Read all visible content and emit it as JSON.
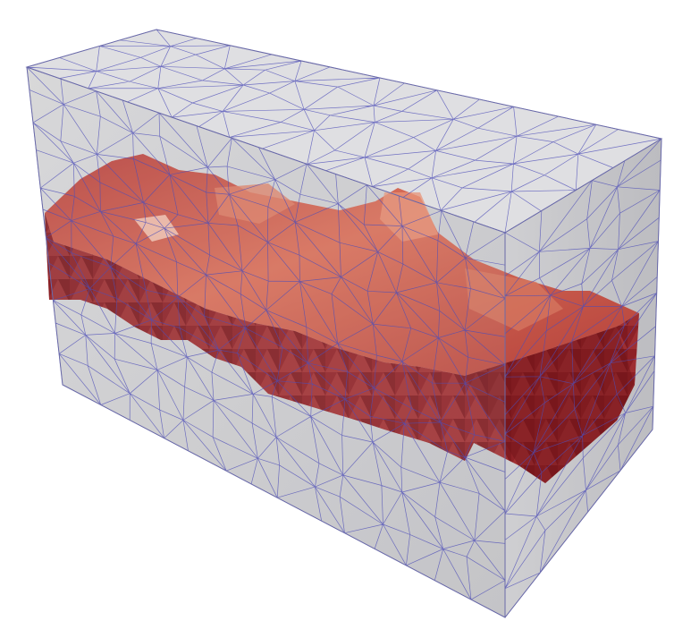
{
  "scene": {
    "kind": "3d-mesh-render",
    "background_color": "#ffffff",
    "box_face_color": "#c9c9cc",
    "box_top_color": "#dcdcdf",
    "wireframe_color": "#4d4db8",
    "inclusion_color": "#a0262b",
    "inclusion_highlight_color": "#d9705a"
  }
}
